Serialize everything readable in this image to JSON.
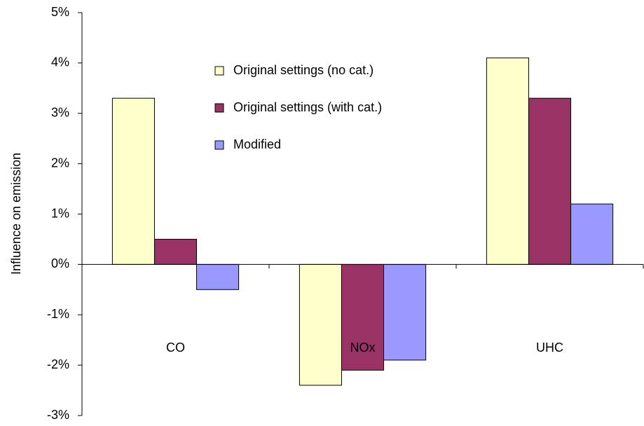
{
  "chart_data": {
    "type": "bar",
    "y_axis_label": "Influence on emission",
    "categories": [
      "CO",
      "NOx",
      "UHC"
    ],
    "series": [
      {
        "name": "Original settings (no cat.)",
        "color": "#ffffcc",
        "values": [
          3.3,
          -2.4,
          4.1
        ]
      },
      {
        "name": "Original settings (with cat.)",
        "color": "#993366",
        "values": [
          0.5,
          -2.1,
          3.3
        ]
      },
      {
        "name": "Modified",
        "color": "#9999ff",
        "values": [
          -0.5,
          -1.9,
          1.2
        ]
      }
    ],
    "ylim": [
      -3,
      5
    ],
    "yticks": [
      {
        "value": -3,
        "label": "-3%"
      },
      {
        "value": -2,
        "label": "-2%"
      },
      {
        "value": -1,
        "label": "-1%"
      },
      {
        "value": 0,
        "label": "0%"
      },
      {
        "value": 1,
        "label": "1%"
      },
      {
        "value": 2,
        "label": "2%"
      },
      {
        "value": 3,
        "label": "3%"
      },
      {
        "value": 4,
        "label": "4%"
      },
      {
        "value": 5,
        "label": "5%"
      }
    ],
    "grid": false,
    "legend": "top"
  }
}
